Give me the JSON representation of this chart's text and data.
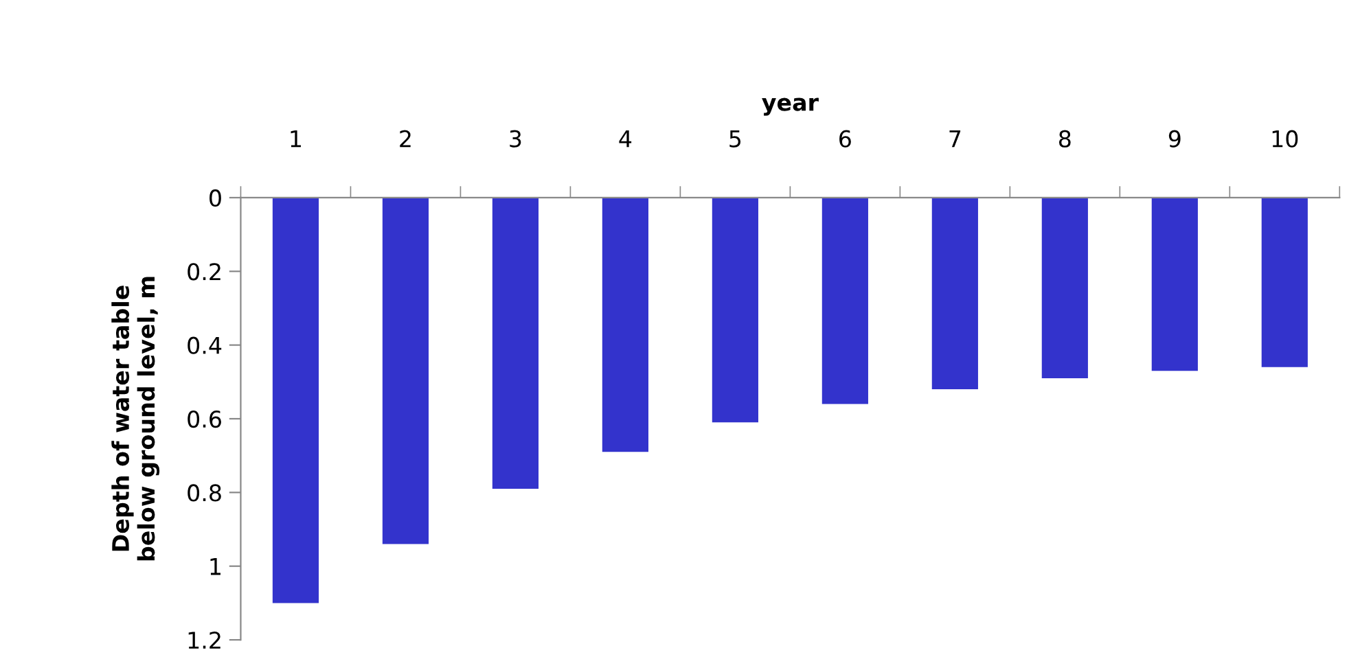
{
  "chart_data": {
    "type": "bar",
    "xlabel": "year",
    "ylabel": "Depth of water table below ground level, m",
    "categories": [
      "1",
      "2",
      "3",
      "4",
      "5",
      "6",
      "7",
      "8",
      "9",
      "10"
    ],
    "values": [
      1.1,
      0.94,
      0.79,
      0.69,
      0.61,
      0.56,
      0.52,
      0.49,
      0.47,
      0.46
    ],
    "color": "#3333cc",
    "ylim": [
      1.2,
      0
    ],
    "yticks": [
      0,
      0.2,
      0.4,
      0.6,
      0.8,
      1,
      1.2
    ],
    "grid": false,
    "legend": false
  }
}
